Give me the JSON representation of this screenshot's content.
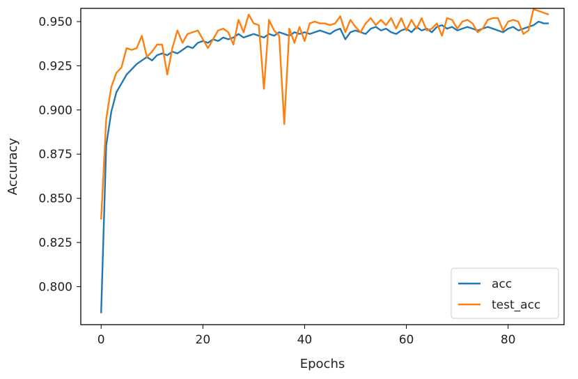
{
  "chart_data": {
    "type": "line",
    "title": "",
    "xlabel": "Epochs",
    "ylabel": "Accuracy",
    "xlim": [
      -4,
      91
    ],
    "ylim": [
      0.7785,
      0.9575
    ],
    "xticks": [
      0,
      20,
      40,
      60,
      80
    ],
    "xtick_labels": [
      "0",
      "20",
      "40",
      "60",
      "80"
    ],
    "yticks": [
      0.8,
      0.825,
      0.85,
      0.875,
      0.9,
      0.925,
      0.95
    ],
    "ytick_labels": [
      "0.800",
      "0.825",
      "0.850",
      "0.875",
      "0.900",
      "0.925",
      "0.950"
    ],
    "grid": false,
    "legend_position": "bottom-right",
    "series": [
      {
        "name": "acc",
        "color": "#1f77b4",
        "x": [
          0,
          1,
          2,
          3,
          4,
          5,
          6,
          7,
          8,
          9,
          10,
          11,
          12,
          13,
          14,
          15,
          16,
          17,
          18,
          19,
          20,
          21,
          22,
          23,
          24,
          25,
          26,
          27,
          28,
          29,
          30,
          31,
          32,
          33,
          34,
          35,
          36,
          37,
          38,
          39,
          40,
          41,
          42,
          43,
          44,
          45,
          46,
          47,
          48,
          49,
          50,
          51,
          52,
          53,
          54,
          55,
          56,
          57,
          58,
          59,
          60,
          61,
          62,
          63,
          64,
          65,
          66,
          67,
          68,
          69,
          70,
          71,
          72,
          73,
          74,
          75,
          76,
          77,
          78,
          79,
          80,
          81,
          82,
          83,
          84,
          85,
          86,
          87,
          88
        ],
        "values": [
          0.785,
          0.88,
          0.899,
          0.91,
          0.915,
          0.92,
          0.923,
          0.926,
          0.928,
          0.93,
          0.928,
          0.931,
          0.932,
          0.931,
          0.933,
          0.932,
          0.934,
          0.936,
          0.935,
          0.938,
          0.939,
          0.938,
          0.94,
          0.939,
          0.941,
          0.94,
          0.941,
          0.943,
          0.941,
          0.942,
          0.943,
          0.942,
          0.941,
          0.943,
          0.942,
          0.944,
          0.943,
          0.942,
          0.944,
          0.943,
          0.944,
          0.943,
          0.944,
          0.945,
          0.944,
          0.943,
          0.945,
          0.946,
          0.94,
          0.944,
          0.945,
          0.944,
          0.943,
          0.946,
          0.947,
          0.945,
          0.946,
          0.944,
          0.943,
          0.945,
          0.946,
          0.944,
          0.947,
          0.945,
          0.946,
          0.944,
          0.947,
          0.948,
          0.946,
          0.947,
          0.945,
          0.946,
          0.947,
          0.946,
          0.945,
          0.946,
          0.947,
          0.946,
          0.945,
          0.944,
          0.946,
          0.947,
          0.945,
          0.946,
          0.947,
          0.948,
          0.95,
          0.949,
          0.949
        ]
      },
      {
        "name": "test_acc",
        "color": "#ff7f0e",
        "x": [
          0,
          1,
          2,
          3,
          4,
          5,
          6,
          7,
          8,
          9,
          10,
          11,
          12,
          13,
          14,
          15,
          16,
          17,
          18,
          19,
          20,
          21,
          22,
          23,
          24,
          25,
          26,
          27,
          28,
          29,
          30,
          31,
          32,
          33,
          34,
          35,
          36,
          37,
          38,
          39,
          40,
          41,
          42,
          43,
          44,
          45,
          46,
          47,
          48,
          49,
          50,
          51,
          52,
          53,
          54,
          55,
          56,
          57,
          58,
          59,
          60,
          61,
          62,
          63,
          64,
          65,
          66,
          67,
          68,
          69,
          70,
          71,
          72,
          73,
          74,
          75,
          76,
          77,
          78,
          79,
          80,
          81,
          82,
          83,
          84,
          85,
          86,
          87,
          88
        ],
        "values": [
          0.838,
          0.895,
          0.913,
          0.921,
          0.924,
          0.935,
          0.934,
          0.935,
          0.942,
          0.93,
          0.933,
          0.937,
          0.937,
          0.92,
          0.935,
          0.945,
          0.938,
          0.943,
          0.944,
          0.945,
          0.94,
          0.935,
          0.94,
          0.945,
          0.946,
          0.944,
          0.937,
          0.951,
          0.944,
          0.954,
          0.949,
          0.948,
          0.912,
          0.951,
          0.945,
          0.942,
          0.892,
          0.946,
          0.938,
          0.947,
          0.939,
          0.949,
          0.95,
          0.949,
          0.949,
          0.948,
          0.949,
          0.953,
          0.944,
          0.951,
          0.947,
          0.944,
          0.949,
          0.952,
          0.948,
          0.951,
          0.948,
          0.952,
          0.946,
          0.952,
          0.945,
          0.951,
          0.946,
          0.952,
          0.945,
          0.946,
          0.949,
          0.942,
          0.952,
          0.951,
          0.946,
          0.95,
          0.951,
          0.949,
          0.944,
          0.946,
          0.951,
          0.952,
          0.952,
          0.945,
          0.95,
          0.951,
          0.95,
          0.943,
          0.945,
          0.957,
          0.956,
          0.955,
          0.954
        ]
      }
    ]
  }
}
